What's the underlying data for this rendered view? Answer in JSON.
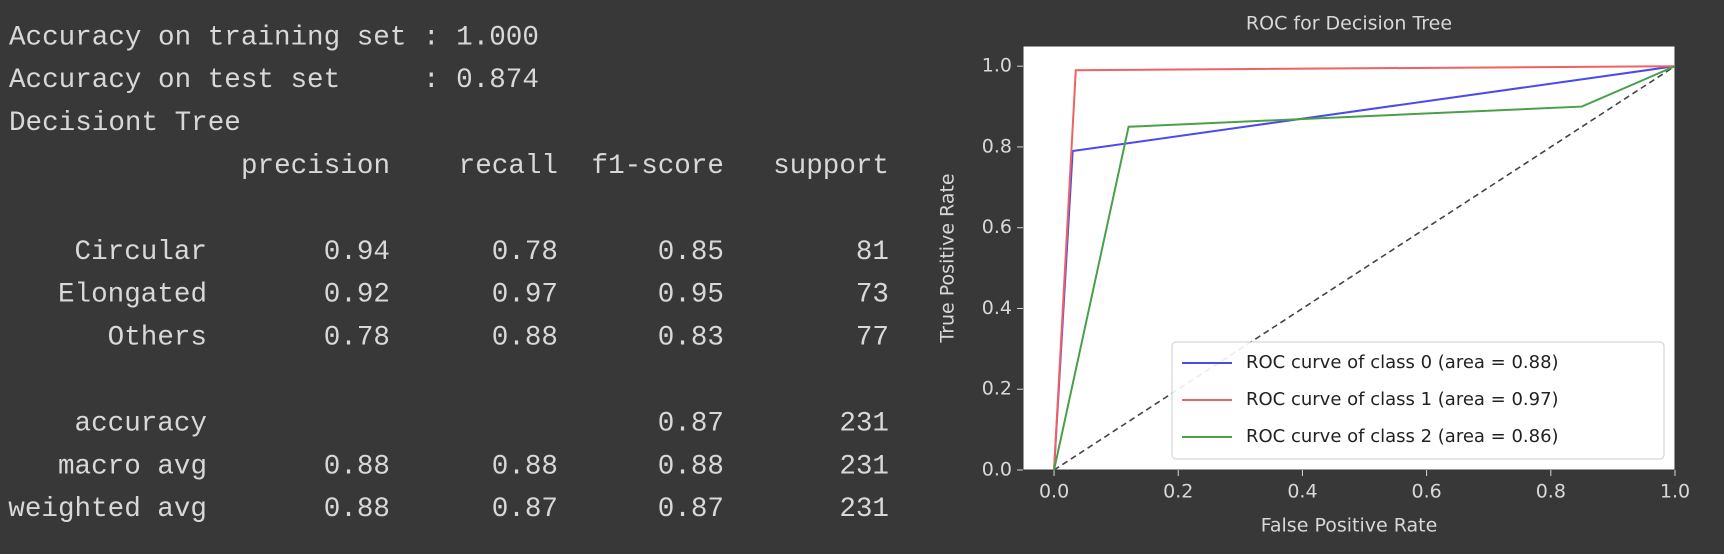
{
  "output_lines": [
    "Accuracy on training set : 1.000",
    "Accuracy on test set     : 0.874",
    "Decisiont Tree"
  ],
  "report": {
    "header": [
      "precision",
      "recall",
      "f1-score",
      "support"
    ],
    "rows": [
      [
        "Circular",
        0.94,
        0.78,
        0.85,
        81
      ],
      [
        "Elongated",
        0.92,
        0.97,
        0.95,
        73
      ],
      [
        "Others",
        0.78,
        0.88,
        0.83,
        77
      ],
      [
        "accuracy",
        null,
        null,
        0.87,
        231
      ],
      [
        "macro avg",
        0.88,
        0.88,
        0.88,
        231
      ],
      [
        "weighted avg",
        0.88,
        0.87,
        0.87,
        231
      ]
    ]
  },
  "chart_data": {
    "type": "line",
    "title": "ROC for Decision Tree",
    "x_label": "False Positive Rate",
    "y_label": "True Positive Rate",
    "series": [
      {
        "name": "ROC curve of class 0 (area = 0.88)",
        "color": "#4a4aee",
        "x": [
          0,
          0.03,
          1
        ],
        "y": [
          0,
          0.79,
          1
        ]
      },
      {
        "name": "ROC curve of class 1 (area = 0.97)",
        "color": "#f06262",
        "x": [
          0,
          0.035,
          1
        ],
        "y": [
          0,
          0.99,
          1
        ]
      },
      {
        "name": "ROC curve of class 2 (area = 0.86)",
        "color": "#48a048",
        "x": [
          0,
          0.12,
          0.85,
          1
        ],
        "y": [
          0,
          0.85,
          0.9,
          1
        ]
      }
    ],
    "xlim": [
      -0.05,
      1.0
    ],
    "ylim": [
      0,
      1.05
    ],
    "xticks": [
      {
        "value": 0,
        "label": "0.0"
      },
      0.2,
      0.4,
      0.6,
      0.8,
      {
        "value": 1,
        "label": "1.0"
      }
    ],
    "yticks": [
      {
        "value": 0,
        "label": "0.0"
      },
      0.2,
      0.4,
      0.6,
      0.8,
      {
        "value": 1,
        "label": "1.0"
      }
    ],
    "legend": "lower right",
    "grid": false
  }
}
